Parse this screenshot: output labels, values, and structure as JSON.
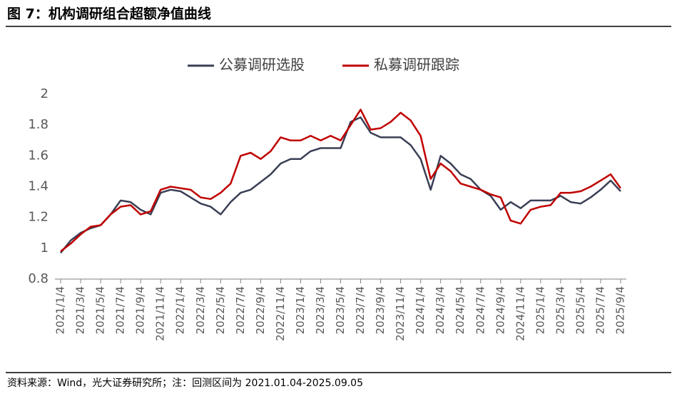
{
  "chart_data": {
    "type": "line",
    "title": "图 7：机构调研组合超额净值曲线",
    "source": "资料来源：Wind，光大证券研究所；注：回测区间为 2021.01.04-2025.09.05",
    "categories": [
      "2021/1/4",
      null,
      "2021/3/4",
      null,
      "2021/5/4",
      null,
      "2021/7/4",
      null,
      "2021/9/4",
      null,
      "2021/11/4",
      null,
      "2022/1/4",
      null,
      "2022/3/4",
      null,
      "2022/5/4",
      null,
      "2022/7/4",
      null,
      "2022/9/4",
      null,
      "2022/11/4",
      null,
      "2023/1/4",
      null,
      "2023/3/4",
      null,
      "2023/5/4",
      null,
      "2023/7/4",
      null,
      "2023/9/4",
      null,
      "2023/11/4",
      null,
      "2024/1/4",
      null,
      "2024/3/4",
      null,
      "2024/5/4",
      null,
      "2024/7/4",
      null,
      "2024/9/4",
      null,
      "2024/11/4",
      null,
      "2025/1/4",
      null,
      "2025/3/4",
      null,
      "2025/5/4",
      null,
      "2025/7/4",
      null,
      "2025/9/4"
    ],
    "series": [
      {
        "name": "公募调研选股",
        "color": "#3a3f55",
        "values": [
          0.97,
          1.05,
          1.1,
          1.13,
          1.15,
          1.22,
          1.31,
          1.3,
          1.25,
          1.22,
          1.36,
          1.38,
          1.37,
          1.33,
          1.29,
          1.27,
          1.22,
          1.3,
          1.36,
          1.38,
          1.43,
          1.48,
          1.55,
          1.58,
          1.58,
          1.63,
          1.65,
          1.65,
          1.65,
          1.82,
          1.85,
          1.75,
          1.72,
          1.72,
          1.72,
          1.67,
          1.58,
          1.38,
          1.6,
          1.55,
          1.48,
          1.45,
          1.38,
          1.34,
          1.25,
          1.3,
          1.26,
          1.31,
          1.31,
          1.31,
          1.34,
          1.3,
          1.29,
          1.33,
          1.38,
          1.44,
          1.37
        ]
      },
      {
        "name": "私募调研跟踪",
        "color": "#c00000",
        "values": [
          0.98,
          1.03,
          1.09,
          1.14,
          1.15,
          1.22,
          1.27,
          1.28,
          1.22,
          1.24,
          1.38,
          1.4,
          1.39,
          1.38,
          1.33,
          1.32,
          1.36,
          1.42,
          1.6,
          1.62,
          1.58,
          1.63,
          1.72,
          1.7,
          1.7,
          1.73,
          1.7,
          1.73,
          1.7,
          1.8,
          1.9,
          1.77,
          1.78,
          1.82,
          1.88,
          1.83,
          1.73,
          1.45,
          1.55,
          1.5,
          1.42,
          1.4,
          1.38,
          1.35,
          1.33,
          1.18,
          1.16,
          1.25,
          1.27,
          1.28,
          1.36,
          1.36,
          1.37,
          1.4,
          1.44,
          1.48,
          1.39
        ]
      }
    ],
    "ylim": [
      0.8,
      2
    ],
    "yticks": [
      0.8,
      1,
      1.2,
      1.4,
      1.6,
      1.8,
      2
    ],
    "grid": false
  }
}
